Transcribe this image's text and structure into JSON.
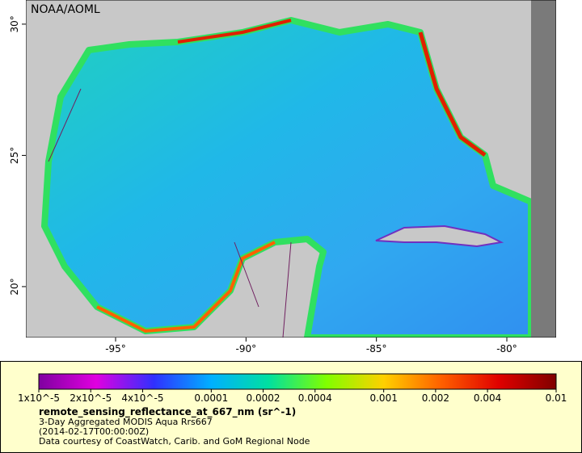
{
  "map": {
    "source": "NOAA/AOML",
    "xlim": [
      -98.44,
      -78.11
    ],
    "ylim": [
      18.06,
      30.92
    ],
    "xticks": [
      {
        "value": -95,
        "label": "-95°"
      },
      {
        "value": -90,
        "label": "-90°"
      },
      {
        "value": -85,
        "label": "-85°"
      },
      {
        "value": -80,
        "label": "-80°"
      }
    ],
    "yticks": [
      {
        "value": 20,
        "label": "20°"
      },
      {
        "value": 25,
        "label": "25°"
      },
      {
        "value": 30,
        "label": "30°"
      }
    ]
  },
  "colorbar": {
    "scale": "log",
    "lim": [
      1e-05,
      0.01
    ],
    "colors": [
      "#7f00a0",
      "#e000e0",
      "#3030ff",
      "#00b0ff",
      "#00e0a0",
      "#80ff00",
      "#ffd000",
      "#ff6000",
      "#e00000",
      "#800000"
    ],
    "ticks": [
      {
        "value": 1e-05,
        "label": "1x10^-5"
      },
      {
        "value": 2e-05,
        "label": "2x10^-5"
      },
      {
        "value": 4e-05,
        "label": "4x10^-5"
      },
      0.0001,
      0.0002,
      0.0004,
      0.001,
      0.002,
      0.004,
      0.01
    ],
    "title": "remote_sensing_reflectance_at_667_nm (sr^-1)",
    "lines": [
      "3-Day Aggregated MODIS Aqua Rrs667",
      "(2014-02-17T00:00:00Z)",
      "Data courtesy of CoastWatch, Carib. and GoM Regional Node"
    ]
  }
}
